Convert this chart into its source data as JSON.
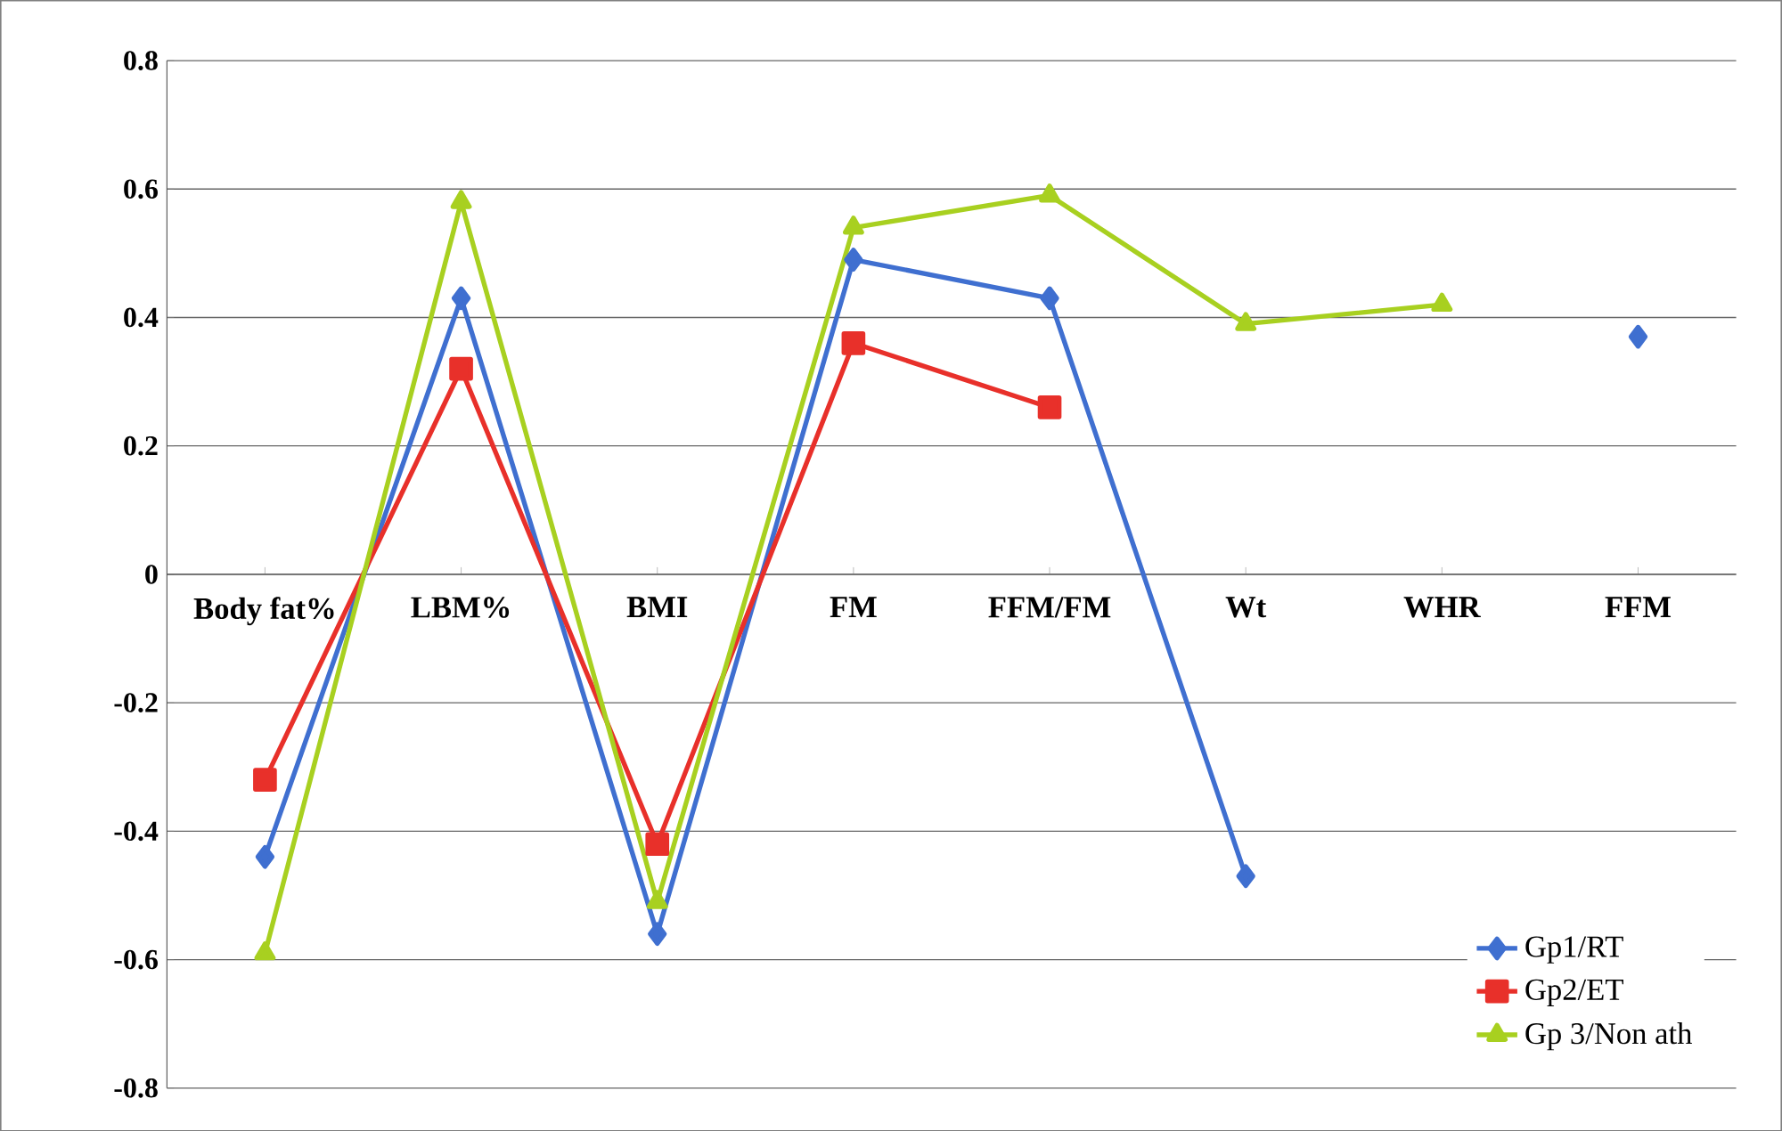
{
  "chart_data": {
    "type": "line",
    "categories": [
      "Body fat%",
      "LBM%",
      "BMI",
      "FM",
      "FFM/FM",
      "Wt",
      "WHR",
      "FFM"
    ],
    "series": [
      {
        "name": "Gp1/RT",
        "color": "#3f6fd0",
        "marker": "diamond",
        "values": [
          -0.44,
          0.43,
          -0.56,
          0.49,
          0.43,
          -0.47,
          null,
          0.37
        ]
      },
      {
        "name": "Gp2/ET",
        "color": "#e8302a",
        "marker": "square",
        "values": [
          -0.32,
          0.32,
          -0.42,
          0.36,
          0.26,
          null,
          null,
          null
        ]
      },
      {
        "name": "Gp 3/Non ath",
        "color": "#a8d020",
        "marker": "triangle",
        "values": [
          -0.59,
          0.58,
          -0.51,
          0.54,
          0.59,
          0.39,
          0.42,
          null
        ]
      }
    ],
    "ylim": [
      -0.8,
      0.8
    ],
    "yticks": [
      -0.8,
      -0.6,
      -0.4,
      -0.2,
      0,
      0.2,
      0.4,
      0.6,
      0.8
    ],
    "grid": "y",
    "legend": "bottom right"
  }
}
